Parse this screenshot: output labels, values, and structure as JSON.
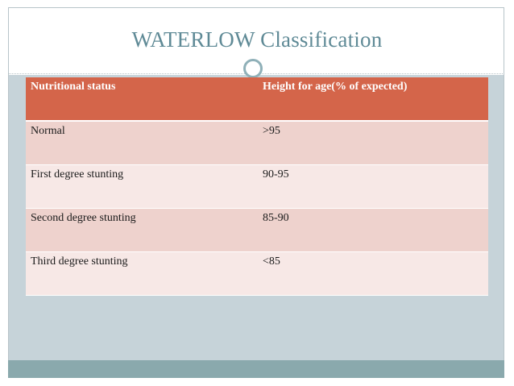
{
  "title": "WATERLOW Classification",
  "table": {
    "headers": [
      "Nutritional status",
      "Height for age(% of expected)"
    ],
    "rows": [
      [
        "Normal",
        ">95"
      ],
      [
        "First degree stunting",
        "90-95"
      ],
      [
        "Second degree stunting",
        "85-90"
      ],
      [
        "Third degree stunting",
        "<85"
      ]
    ]
  },
  "colors": {
    "header_bg": "#d4654a",
    "row_odd_bg": "#eed2cd",
    "row_even_bg": "#f7e8e6",
    "title": "#5f8a96",
    "panel_bg": "#c6d3d9",
    "bottom_bar": "#8aa9ad"
  }
}
